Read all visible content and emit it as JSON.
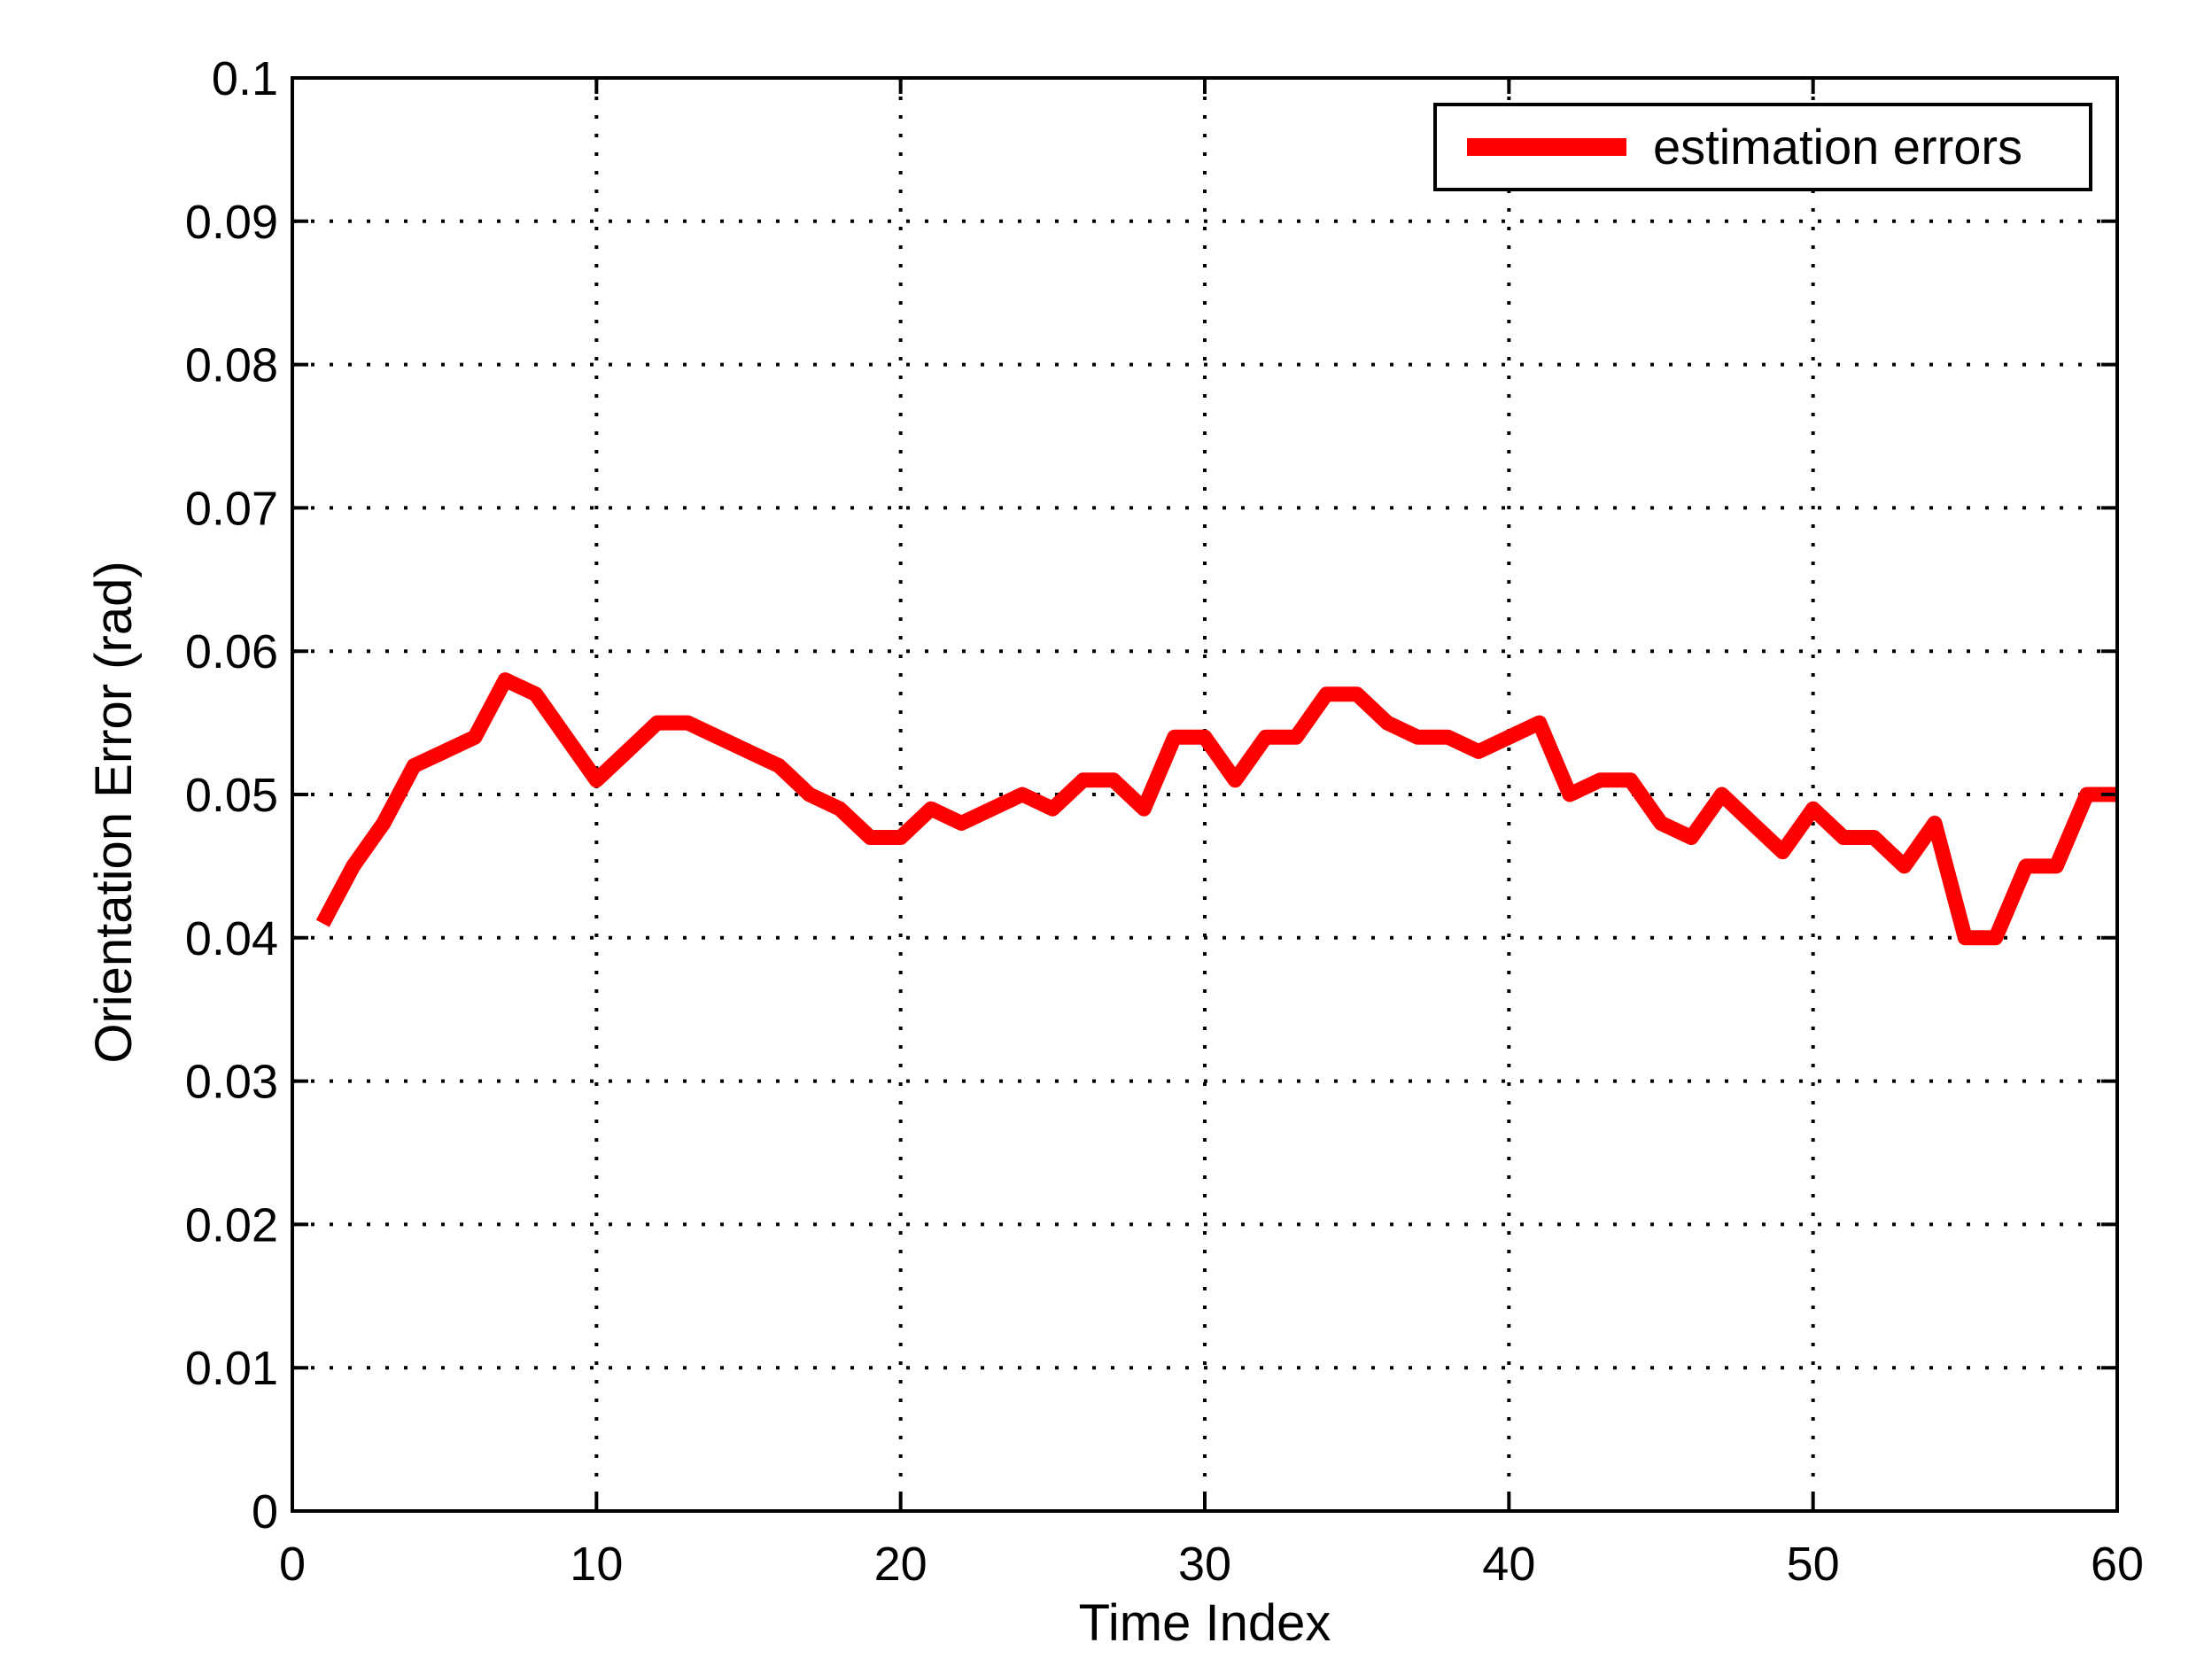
{
  "chart_data": {
    "type": "line",
    "xlabel": "Time Index",
    "ylabel": "Orientation Error (rad)",
    "xlim": [
      0,
      60
    ],
    "ylim": [
      0,
      0.1
    ],
    "xticks": [
      0,
      10,
      20,
      30,
      40,
      50,
      60
    ],
    "xtick_labels": [
      "0",
      "10",
      "20",
      "30",
      "40",
      "50",
      "60"
    ],
    "yticks": [
      0,
      0.01,
      0.02,
      0.03,
      0.04,
      0.05,
      0.06,
      0.07,
      0.08,
      0.09,
      0.1
    ],
    "ytick_labels": [
      "0",
      "0.01",
      "0.02",
      "0.03",
      "0.04",
      "0.05",
      "0.06",
      "0.07",
      "0.08",
      "0.09",
      "0.1"
    ],
    "grid": true,
    "legend_position": "top-right",
    "series": [
      {
        "name": "estimation errors",
        "color": "#ff0000",
        "x": [
          1,
          2,
          3,
          4,
          5,
          6,
          7,
          8,
          9,
          10,
          11,
          12,
          13,
          14,
          15,
          16,
          17,
          18,
          19,
          20,
          21,
          22,
          23,
          24,
          25,
          26,
          27,
          28,
          29,
          30,
          31,
          32,
          33,
          34,
          35,
          36,
          37,
          38,
          39,
          40,
          41,
          42,
          43,
          44,
          45,
          46,
          47,
          48,
          49,
          50,
          51,
          52,
          53,
          54,
          55,
          56,
          57,
          58,
          59,
          60
        ],
        "values": [
          0.041,
          0.045,
          0.048,
          0.052,
          0.053,
          0.054,
          0.058,
          0.057,
          0.054,
          0.051,
          0.053,
          0.055,
          0.055,
          0.054,
          0.053,
          0.052,
          0.05,
          0.049,
          0.047,
          0.047,
          0.049,
          0.048,
          0.049,
          0.05,
          0.049,
          0.051,
          0.051,
          0.049,
          0.054,
          0.054,
          0.051,
          0.054,
          0.054,
          0.057,
          0.057,
          0.055,
          0.054,
          0.054,
          0.053,
          0.054,
          0.055,
          0.05,
          0.051,
          0.051,
          0.048,
          0.047,
          0.05,
          0.048,
          0.046,
          0.049,
          0.047,
          0.047,
          0.045,
          0.048,
          0.04,
          0.04,
          0.045,
          0.045,
          0.05,
          0.05
        ]
      }
    ]
  }
}
